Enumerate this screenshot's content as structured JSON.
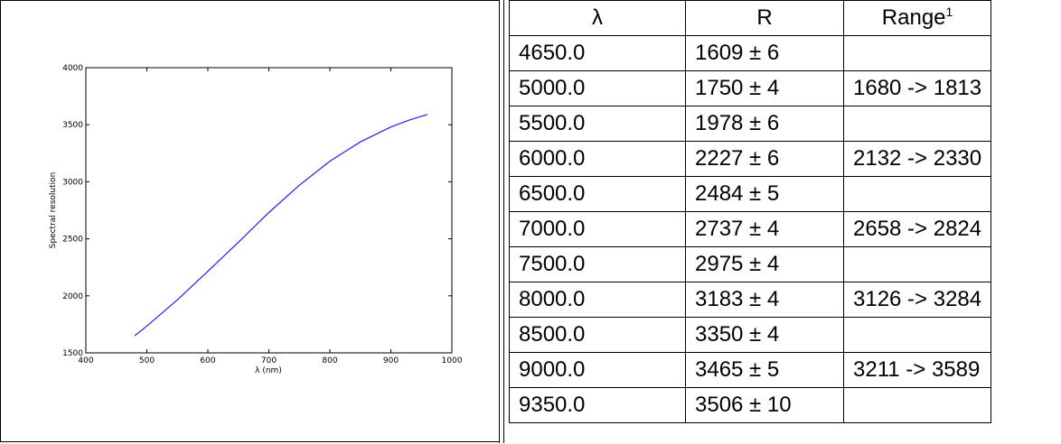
{
  "chart_data": {
    "type": "line",
    "xlabel": "λ (nm)",
    "ylabel": "Spectral resolution",
    "xlim": [
      400,
      1000
    ],
    "ylim": [
      1500,
      4000
    ],
    "xticks": [
      "400",
      "500",
      "600",
      "700",
      "800",
      "900",
      "1000"
    ],
    "yticks": [
      "1500",
      "2000",
      "2500",
      "3000",
      "3500",
      "4000"
    ],
    "series": [
      {
        "color": "#1f1fff",
        "x": [
          480,
          500,
          550,
          600,
          650,
          700,
          750,
          800,
          850,
          900,
          930,
          960
        ],
        "y": [
          1650,
          1735,
          1965,
          2215,
          2470,
          2730,
          2970,
          3180,
          3350,
          3480,
          3540,
          3590
        ]
      }
    ],
    "grid": false
  },
  "table": {
    "headers": [
      "λ",
      "R",
      "Range"
    ],
    "header_sup": "1",
    "rows": [
      [
        "4650.0",
        "1609 ± 6",
        ""
      ],
      [
        "5000.0",
        "1750 ± 4",
        "1680 -> 1813"
      ],
      [
        "5500.0",
        "1978 ± 6",
        ""
      ],
      [
        "6000.0",
        "2227 ± 6",
        "2132 -> 2330"
      ],
      [
        "6500.0",
        "2484 ± 5",
        ""
      ],
      [
        "7000.0",
        "2737 ± 4",
        "2658 -> 2824"
      ],
      [
        "7500.0",
        "2975 ± 4",
        ""
      ],
      [
        "8000.0",
        "3183 ± 4",
        "3126 -> 3284"
      ],
      [
        "8500.0",
        "3350 ± 4",
        ""
      ],
      [
        "9000.0",
        "3465 ± 5",
        "3211 -> 3589"
      ],
      [
        "9350.0",
        "3506 ± 10",
        ""
      ]
    ]
  }
}
